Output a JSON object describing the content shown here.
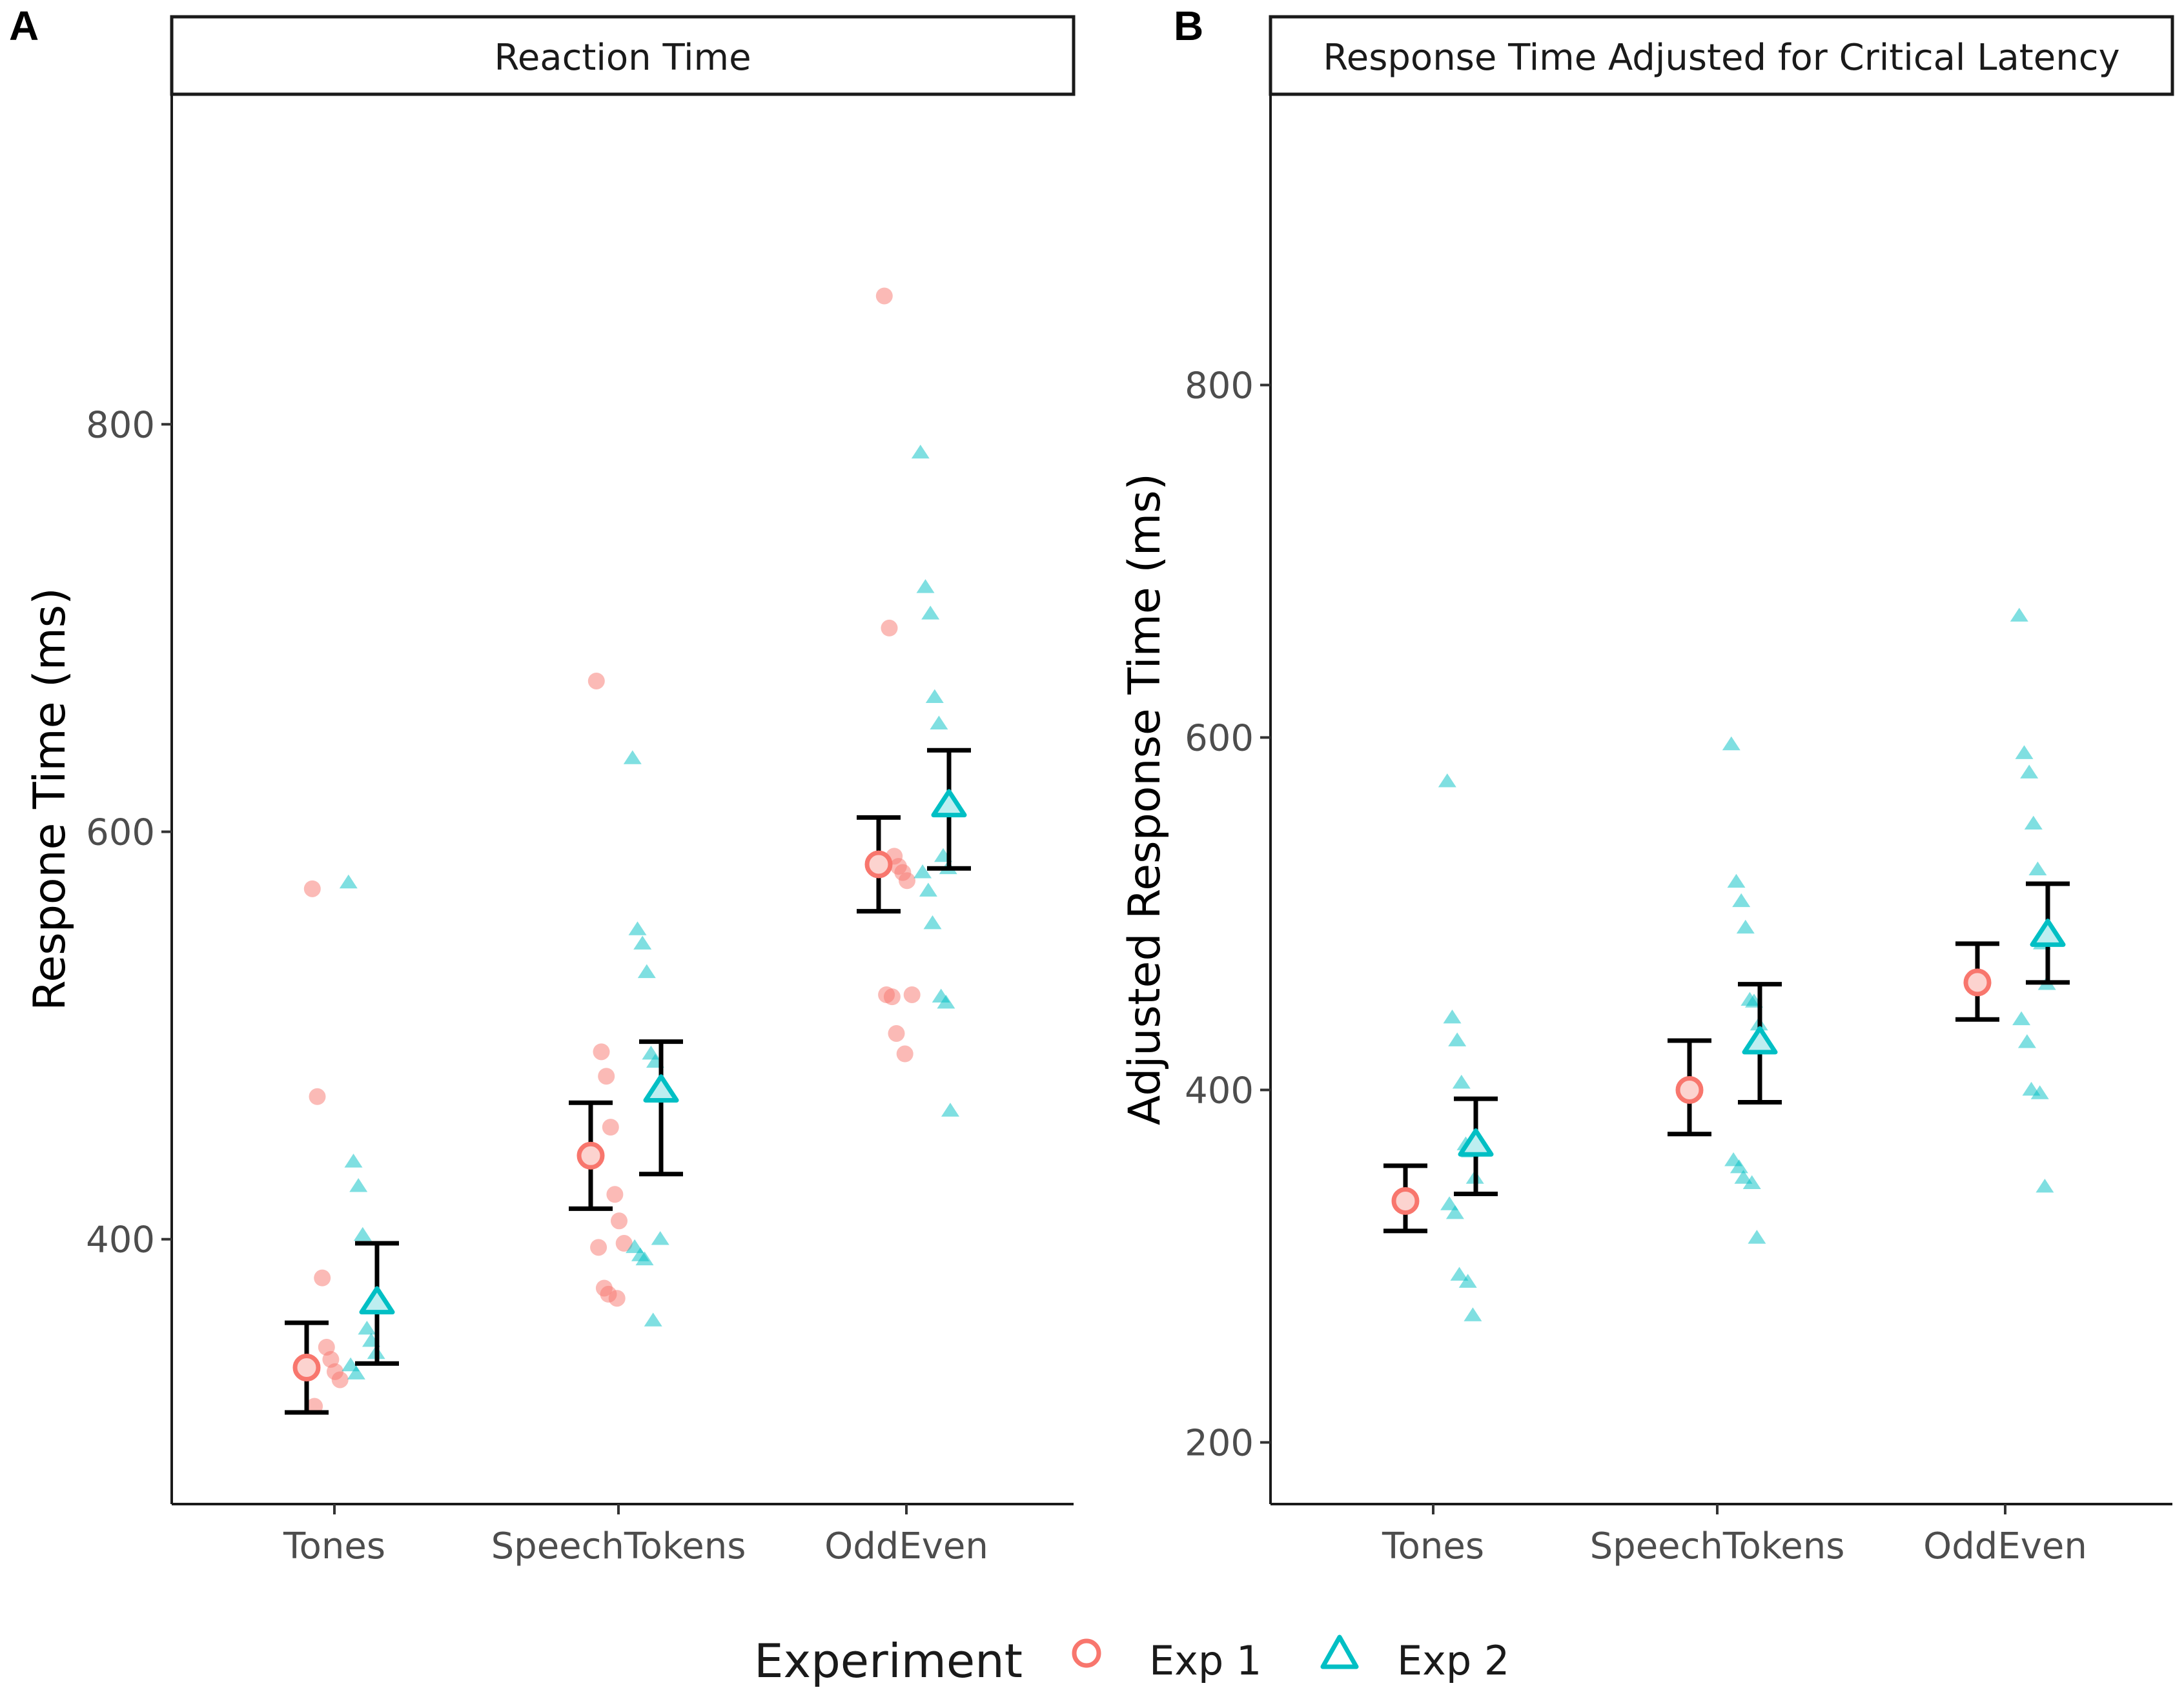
{
  "figure": {
    "legend": {
      "title": "Experiment",
      "items": [
        {
          "label": "Exp 1",
          "shape": "circle",
          "color": "#F8766D"
        },
        {
          "label": "Exp 2",
          "shape": "triangle",
          "color": "#00BFC4"
        }
      ]
    }
  },
  "chart_data": [
    {
      "type": "scatter",
      "panel_label": "A",
      "title": "Reaction Time",
      "xlabel": "",
      "ylabel": "Respone Time (ms)",
      "categories": [
        "Tones",
        "SpeechTokens",
        "OddEven"
      ],
      "ylim": [
        270,
        962
      ],
      "yticks": [
        400,
        600,
        800
      ],
      "series": [
        {
          "name": "Exp 1",
          "shape": "circle",
          "color": "#F8766D",
          "means": [
            337,
            441,
            584
          ],
          "ci_lower": [
            315,
            415,
            561
          ],
          "ci_upper": [
            359,
            467,
            607
          ],
          "points": [
            [
              572,
              470,
              381,
              347,
              341,
              335,
              331,
              318
            ],
            [
              674,
              492,
              480,
              455,
              422,
              409,
              398,
              396,
              376,
              373,
              371
            ],
            [
              863,
              700,
              588,
              583,
              580,
              576,
              520,
              520,
              519,
              501,
              491
            ]
          ]
        },
        {
          "name": "Exp 2",
          "shape": "triangle",
          "color": "#00BFC4",
          "means": [
            369,
            473,
            613
          ],
          "ci_lower": [
            339,
            432,
            582
          ],
          "ci_upper": [
            398,
            497,
            640
          ],
          "points": [
            [
              575,
              438,
              426,
              402,
              356,
              350,
              344,
              338,
              334
            ],
            [
              636,
              552,
              545,
              531,
              491,
              487,
              400,
              396,
              392,
              390,
              360
            ],
            [
              786,
              720,
              707,
              666,
              653,
              588,
              582,
              580,
              571,
              555,
              519,
              516,
              463
            ]
          ]
        }
      ]
    },
    {
      "type": "scatter",
      "panel_label": "B",
      "title": "Response Time Adjusted for Critical Latency",
      "xlabel": "",
      "ylabel": "Adjusted Response Time (ms)",
      "categories": [
        "Tones",
        "SpeechTokens",
        "OddEven"
      ],
      "ylim": [
        165,
        965
      ],
      "yticks": [
        200,
        400,
        600,
        800
      ],
      "series": [
        {
          "name": "Exp 1",
          "shape": "circle",
          "color": "#F8766D",
          "means": [
            337,
            400,
            461
          ],
          "ci_lower": [
            320,
            375,
            440
          ],
          "ci_upper": [
            357,
            428,
            483
          ],
          "points": [
            [],
            [],
            []
          ]
        },
        {
          "name": "Exp 2",
          "shape": "triangle",
          "color": "#00BFC4",
          "means": [
            369,
            427,
            488
          ],
          "ci_lower": [
            341,
            393,
            461
          ],
          "ci_upper": [
            395,
            460,
            517
          ],
          "points": [
            [
              575,
              441,
              428,
              404,
              369,
              365,
              350,
              335,
              330,
              295,
              291,
              272
            ],
            [
              596,
              518,
              507,
              492,
              451,
              450,
              437,
              360,
              356,
              350,
              347,
              316
            ],
            [
              669,
              591,
              580,
              551,
              525,
              483,
              460,
              440,
              427,
              400,
              398,
              345
            ]
          ]
        }
      ]
    }
  ]
}
